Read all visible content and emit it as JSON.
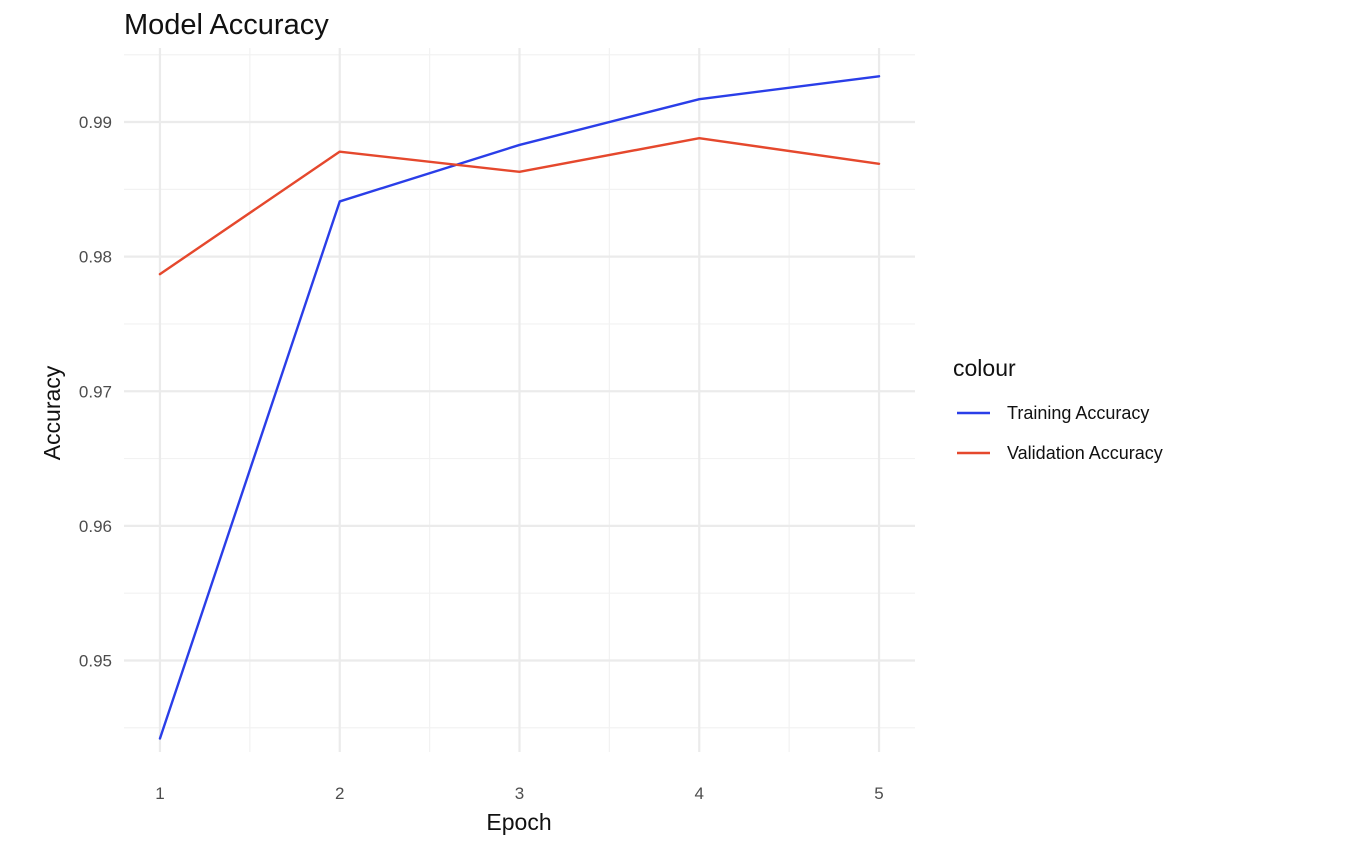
{
  "chart_data": {
    "type": "line",
    "title": "Model Accuracy",
    "xlabel": "Epoch",
    "ylabel": "Accuracy",
    "x": [
      1,
      2,
      3,
      4,
      5
    ],
    "xlim": [
      0.8,
      5.2
    ],
    "ylim": [
      0.9432,
      0.9955
    ],
    "x_ticks": [
      1,
      2,
      3,
      4,
      5
    ],
    "y_ticks": [
      0.95,
      0.96,
      0.97,
      0.98,
      0.99
    ],
    "y_tick_labels": [
      "0.95",
      "0.96",
      "0.97",
      "0.98",
      "0.99"
    ],
    "grid": true,
    "legend": {
      "title": "colour",
      "position": "right"
    },
    "series": [
      {
        "name": "Training Accuracy",
        "color": "#2a3ee8",
        "values": [
          0.9442,
          0.9841,
          0.9883,
          0.9917,
          0.9934
        ]
      },
      {
        "name": "Validation Accuracy",
        "color": "#e5482d",
        "values": [
          0.9787,
          0.9878,
          0.9863,
          0.9888,
          0.9869
        ]
      }
    ]
  }
}
